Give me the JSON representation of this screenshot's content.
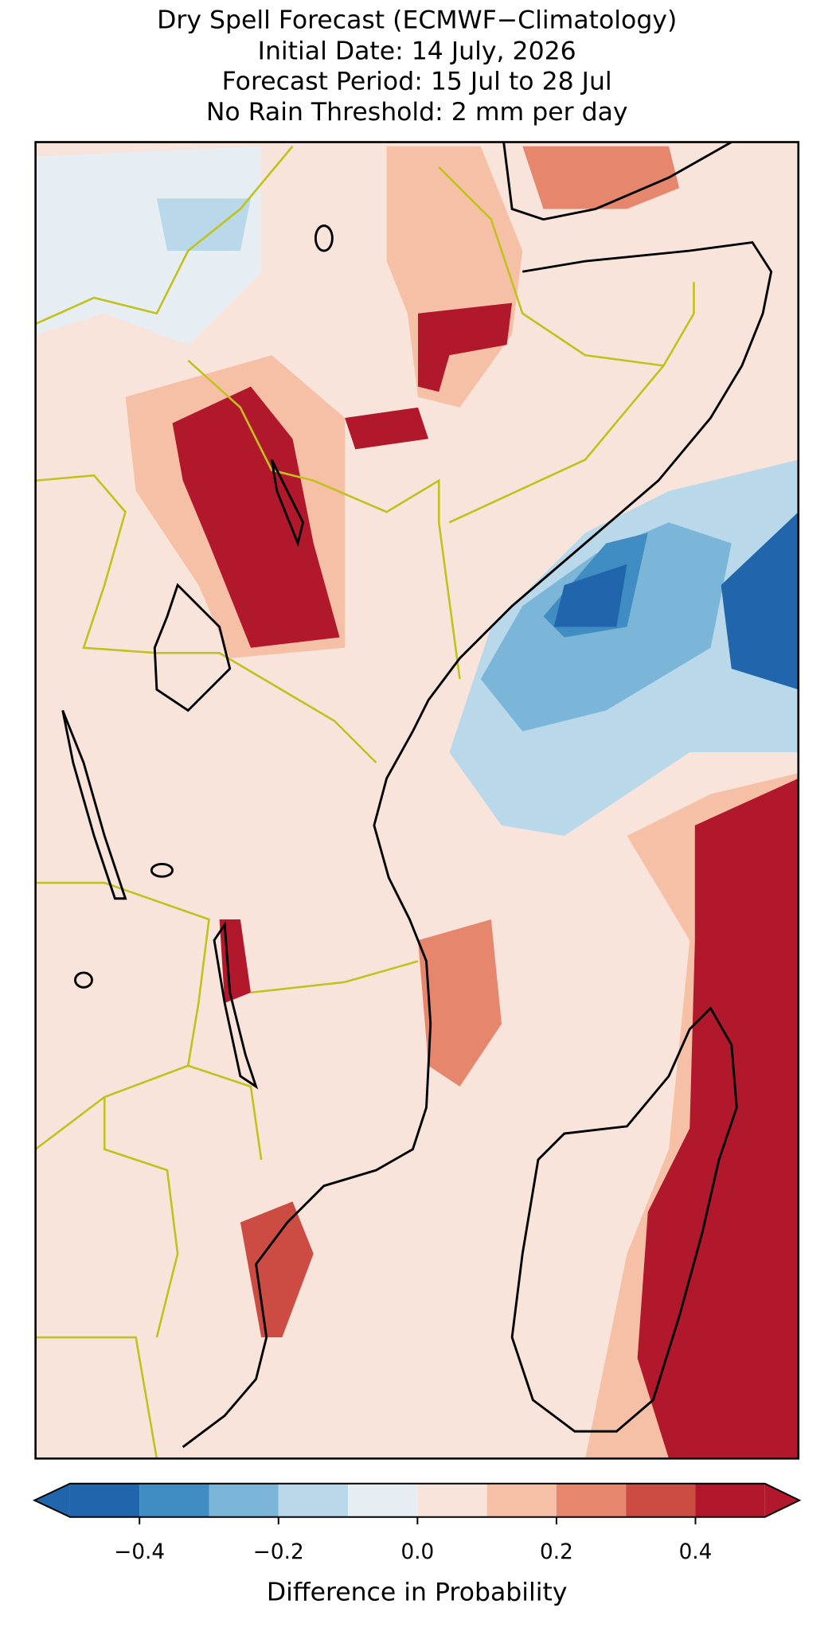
{
  "title": [
    "Dry Spell Forecast (ECMWF−Climatology)",
    "Initial Date: 14 July, 2026",
    "Forecast Period: 15 Jul to 28 Jul",
    "No Rain Threshold: 2 mm per day"
  ],
  "colorbar": {
    "label": "Difference in Probability",
    "bounds": [
      -0.5,
      -0.4,
      -0.3,
      -0.2,
      -0.1,
      0,
      0.1,
      0.2,
      0.3,
      0.4,
      0.5
    ],
    "colors": [
      "#2166ac",
      "#3f8dc2",
      "#7bb6d9",
      "#b9d8ea",
      "#e6eef4",
      "#f9e4dc",
      "#f6c0a7",
      "#e6876d",
      "#cc4c44",
      "#b2182b"
    ],
    "under_color": "#2166ac",
    "over_color": "#b2182b",
    "ticks": [
      {
        "value": -0.4,
        "label": "−0.4"
      },
      {
        "value": -0.2,
        "label": "−0.2"
      },
      {
        "value": 0,
        "label": "0.0"
      },
      0.2,
      0.4
    ]
  }
}
